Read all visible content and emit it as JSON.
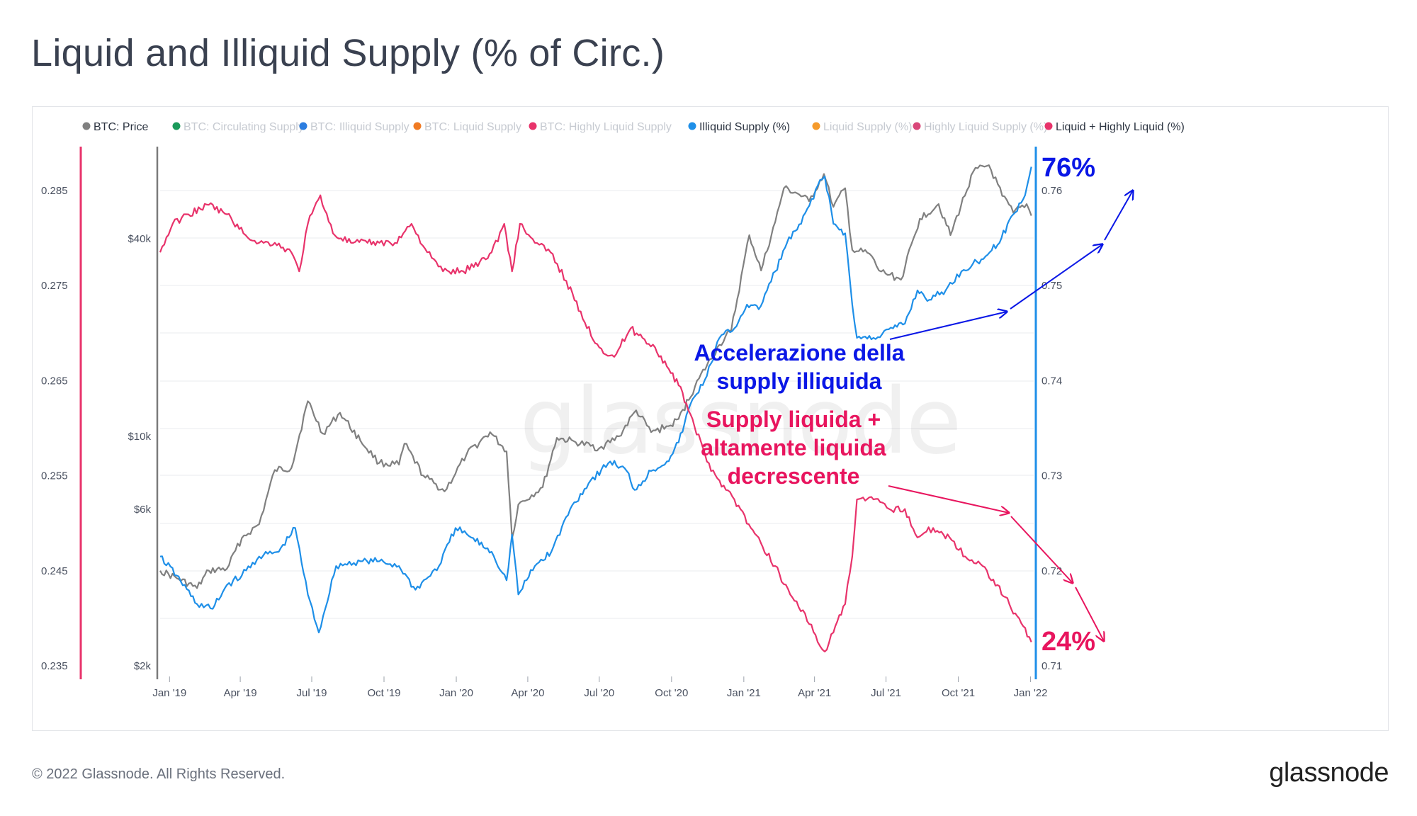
{
  "page": {
    "title": "Liquid and Illiquid Supply (% of Circ.)",
    "copyright": "© 2022 Glassnode. All Rights Reserved.",
    "brand_logo": "glassnode",
    "watermark": "glassnode"
  },
  "chart_data": {
    "type": "line",
    "title": "Liquid and Illiquid Supply (% of Circ.)",
    "legend_position": "top",
    "legend": [
      {
        "label": "BTC: Price",
        "color": "#808080",
        "active": true
      },
      {
        "label": "BTC: Circulating Supply",
        "color": "#1a9a5a",
        "active": false
      },
      {
        "label": "BTC: Illiquid Supply",
        "color": "#2b7de0",
        "active": false
      },
      {
        "label": "BTC: Liquid Supply",
        "color": "#f07a22",
        "active": false
      },
      {
        "label": "BTC: Highly Liquid Supply",
        "color": "#e8336b",
        "active": false
      },
      {
        "label": "Illiquid Supply (%)",
        "color": "#1e8fe8",
        "active": true
      },
      {
        "label": "Liquid Supply (%)",
        "color": "#f59a2b",
        "active": false
      },
      {
        "label": "Highly Liquid Supply (%)",
        "color": "#d9487a",
        "active": false
      },
      {
        "label": "Liquid + Highly Liquid (%)",
        "color": "#e8336b",
        "active": true
      }
    ],
    "x_ticks": [
      "Jan '19",
      "Apr '19",
      "Jul '19",
      "Oct '19",
      "Jan '20",
      "Apr '20",
      "Jul '20",
      "Oct '20",
      "Jan '21",
      "Apr '21",
      "Jul '21",
      "Oct '21",
      "Jan '22"
    ],
    "x_range": [
      "2018-12-20",
      "2022-01-05"
    ],
    "axes": {
      "left_liquid": {
        "ticks": [
          "0.285",
          "0.275",
          "0.265",
          "0.255",
          "0.245",
          "0.235"
        ],
        "range": [
          0.235,
          0.29
        ],
        "color": "#e8336b"
      },
      "left_price": {
        "ticks": [
          "$40k",
          "$10k",
          "$6k",
          "$2k"
        ],
        "scale": "log",
        "color": "#808080"
      },
      "right_illiquid": {
        "ticks": [
          "0.76",
          "0.75",
          "0.74",
          "0.73",
          "0.72",
          "0.71"
        ],
        "range": [
          0.71,
          0.765
        ],
        "color": "#1e8fe8"
      }
    },
    "series": [
      {
        "name": "BTC: Price",
        "color": "#808080",
        "axis": "left_price",
        "points": [
          [
            "2018-12-20",
            3900
          ],
          [
            "2019-01-10",
            3700
          ],
          [
            "2019-02-05",
            3450
          ],
          [
            "2019-02-20",
            3900
          ],
          [
            "2019-03-15",
            3950
          ],
          [
            "2019-04-03",
            4900
          ],
          [
            "2019-04-25",
            5400
          ],
          [
            "2019-05-15",
            7900
          ],
          [
            "2019-06-05",
            8000
          ],
          [
            "2019-06-26",
            12800
          ],
          [
            "2019-07-15",
            10200
          ],
          [
            "2019-08-06",
            11800
          ],
          [
            "2019-09-01",
            9700
          ],
          [
            "2019-09-25",
            8300
          ],
          [
            "2019-10-20",
            8200
          ],
          [
            "2019-10-27",
            9500
          ],
          [
            "2019-11-20",
            7600
          ],
          [
            "2019-12-17",
            6800
          ],
          [
            "2020-01-14",
            8800
          ],
          [
            "2020-02-13",
            10300
          ],
          [
            "2020-03-05",
            9000
          ],
          [
            "2020-03-12",
            4900
          ],
          [
            "2020-03-20",
            6200
          ],
          [
            "2020-04-20",
            7000
          ],
          [
            "2020-05-08",
            9900
          ],
          [
            "2020-06-01",
            9600
          ],
          [
            "2020-07-01",
            9200
          ],
          [
            "2020-07-26",
            10000
          ],
          [
            "2020-08-17",
            12000
          ],
          [
            "2020-09-05",
            10300
          ],
          [
            "2020-09-30",
            10800
          ],
          [
            "2020-10-10",
            11300
          ],
          [
            "2020-11-05",
            15000
          ],
          [
            "2020-12-01",
            19000
          ],
          [
            "2020-12-16",
            21000
          ],
          [
            "2021-01-08",
            41000
          ],
          [
            "2021-01-23",
            32000
          ],
          [
            "2021-02-10",
            45000
          ],
          [
            "2021-02-21",
            57000
          ],
          [
            "2021-03-10",
            55000
          ],
          [
            "2021-03-25",
            52000
          ],
          [
            "2021-04-13",
            63000
          ],
          [
            "2021-04-25",
            50000
          ],
          [
            "2021-05-10",
            57000
          ],
          [
            "2021-05-19",
            37000
          ],
          [
            "2021-06-10",
            36000
          ],
          [
            "2021-06-22",
            32000
          ],
          [
            "2021-07-20",
            30000
          ],
          [
            "2021-08-13",
            46000
          ],
          [
            "2021-09-06",
            51000
          ],
          [
            "2021-09-21",
            41000
          ],
          [
            "2021-10-20",
            64000
          ],
          [
            "2021-11-09",
            67000
          ],
          [
            "2021-11-26",
            54000
          ],
          [
            "2021-12-10",
            48000
          ],
          [
            "2021-12-27",
            51000
          ],
          [
            "2022-01-02",
            47000
          ]
        ]
      },
      {
        "name": "Illiquid Supply (%)",
        "color": "#1e8fe8",
        "axis": "right_illiquid",
        "points": [
          [
            "2018-12-20",
            0.7215
          ],
          [
            "2019-01-10",
            0.7195
          ],
          [
            "2019-02-05",
            0.7165
          ],
          [
            "2019-02-25",
            0.716
          ],
          [
            "2019-03-15",
            0.7185
          ],
          [
            "2019-04-03",
            0.7195
          ],
          [
            "2019-04-25",
            0.7215
          ],
          [
            "2019-05-20",
            0.722
          ],
          [
            "2019-06-10",
            0.7245
          ],
          [
            "2019-06-26",
            0.7175
          ],
          [
            "2019-07-10",
            0.7135
          ],
          [
            "2019-08-01",
            0.7205
          ],
          [
            "2019-09-01",
            0.721
          ],
          [
            "2019-09-25",
            0.721
          ],
          [
            "2019-10-20",
            0.7205
          ],
          [
            "2019-11-10",
            0.718
          ],
          [
            "2019-12-10",
            0.7205
          ],
          [
            "2019-12-31",
            0.7245
          ],
          [
            "2020-01-20",
            0.7235
          ],
          [
            "2020-02-15",
            0.722
          ],
          [
            "2020-03-05",
            0.719
          ],
          [
            "2020-03-12",
            0.7238
          ],
          [
            "2020-03-20",
            0.7175
          ],
          [
            "2020-04-10",
            0.7205
          ],
          [
            "2020-05-01",
            0.722
          ],
          [
            "2020-05-25",
            0.7265
          ],
          [
            "2020-06-20",
            0.7295
          ],
          [
            "2020-07-15",
            0.7315
          ],
          [
            "2020-08-05",
            0.7305
          ],
          [
            "2020-08-15",
            0.7285
          ],
          [
            "2020-09-05",
            0.7305
          ],
          [
            "2020-09-25",
            0.7315
          ],
          [
            "2020-10-10",
            0.7335
          ],
          [
            "2020-10-25",
            0.7375
          ],
          [
            "2020-11-15",
            0.7405
          ],
          [
            "2020-12-01",
            0.7445
          ],
          [
            "2020-12-20",
            0.7455
          ],
          [
            "2021-01-05",
            0.748
          ],
          [
            "2021-01-20",
            0.7475
          ],
          [
            "2021-02-10",
            0.7515
          ],
          [
            "2021-02-25",
            0.7545
          ],
          [
            "2021-03-15",
            0.7565
          ],
          [
            "2021-04-05",
            0.7605
          ],
          [
            "2021-04-14",
            0.7615
          ],
          [
            "2021-04-25",
            0.7565
          ],
          [
            "2021-05-10",
            0.7555
          ],
          [
            "2021-05-19",
            0.748
          ],
          [
            "2021-05-25",
            0.7445
          ],
          [
            "2021-06-15",
            0.7445
          ],
          [
            "2021-07-10",
            0.7455
          ],
          [
            "2021-07-25",
            0.746
          ],
          [
            "2021-08-10",
            0.7495
          ],
          [
            "2021-08-25",
            0.7485
          ],
          [
            "2021-09-15",
            0.7495
          ],
          [
            "2021-10-05",
            0.7515
          ],
          [
            "2021-10-25",
            0.7525
          ],
          [
            "2021-11-10",
            0.7535
          ],
          [
            "2021-11-25",
            0.755
          ],
          [
            "2021-12-10",
            0.7575
          ],
          [
            "2021-12-25",
            0.7595
          ],
          [
            "2022-01-02",
            0.7625
          ]
        ]
      },
      {
        "name": "Liquid + Highly Liquid (%)",
        "color": "#e8336b",
        "axis": "left_liquid",
        "points": [
          [
            "2018-12-20",
            0.2785
          ],
          [
            "2019-01-05",
            0.2815
          ],
          [
            "2019-01-25",
            0.2825
          ],
          [
            "2019-02-20",
            0.2835
          ],
          [
            "2019-03-15",
            0.2825
          ],
          [
            "2019-04-05",
            0.2805
          ],
          [
            "2019-04-25",
            0.2795
          ],
          [
            "2019-05-15",
            0.2795
          ],
          [
            "2019-06-05",
            0.2785
          ],
          [
            "2019-06-15",
            0.2765
          ],
          [
            "2019-06-26",
            0.2815
          ],
          [
            "2019-07-12",
            0.2845
          ],
          [
            "2019-07-28",
            0.2805
          ],
          [
            "2019-08-20",
            0.2795
          ],
          [
            "2019-09-10",
            0.2795
          ],
          [
            "2019-09-25",
            0.2795
          ],
          [
            "2019-10-15",
            0.2795
          ],
          [
            "2019-11-05",
            0.2815
          ],
          [
            "2019-11-25",
            0.2785
          ],
          [
            "2019-12-15",
            0.2765
          ],
          [
            "2020-01-10",
            0.2765
          ],
          [
            "2020-01-31",
            0.2775
          ],
          [
            "2020-02-15",
            0.2785
          ],
          [
            "2020-03-02",
            0.2815
          ],
          [
            "2020-03-12",
            0.2765
          ],
          [
            "2020-03-22",
            0.2815
          ],
          [
            "2020-04-10",
            0.2795
          ],
          [
            "2020-04-30",
            0.2785
          ],
          [
            "2020-05-20",
            0.2755
          ],
          [
            "2020-06-10",
            0.2715
          ],
          [
            "2020-07-01",
            0.2685
          ],
          [
            "2020-07-20",
            0.2675
          ],
          [
            "2020-08-10",
            0.2705
          ],
          [
            "2020-08-25",
            0.2695
          ],
          [
            "2020-09-10",
            0.2685
          ],
          [
            "2020-09-25",
            0.2665
          ],
          [
            "2020-10-10",
            0.2645
          ],
          [
            "2020-10-25",
            0.2615
          ],
          [
            "2020-11-15",
            0.2565
          ],
          [
            "2020-12-01",
            0.2545
          ],
          [
            "2020-12-20",
            0.2525
          ],
          [
            "2021-01-10",
            0.2495
          ],
          [
            "2021-01-25",
            0.2475
          ],
          [
            "2021-02-10",
            0.2455
          ],
          [
            "2021-03-01",
            0.2425
          ],
          [
            "2021-03-20",
            0.2405
          ],
          [
            "2021-04-05",
            0.2375
          ],
          [
            "2021-04-14",
            0.2365
          ],
          [
            "2021-04-25",
            0.2385
          ],
          [
            "2021-05-10",
            0.2415
          ],
          [
            "2021-05-19",
            0.2465
          ],
          [
            "2021-05-25",
            0.2525
          ],
          [
            "2021-06-15",
            0.2525
          ],
          [
            "2021-07-05",
            0.2515
          ],
          [
            "2021-07-25",
            0.2515
          ],
          [
            "2021-08-10",
            0.2485
          ],
          [
            "2021-08-30",
            0.2495
          ],
          [
            "2021-09-20",
            0.2485
          ],
          [
            "2021-10-10",
            0.2465
          ],
          [
            "2021-11-01",
            0.2455
          ],
          [
            "2021-11-20",
            0.2435
          ],
          [
            "2021-12-05",
            0.2415
          ],
          [
            "2021-12-20",
            0.2395
          ],
          [
            "2022-01-02",
            0.2375
          ]
        ]
      }
    ]
  },
  "annotations": {
    "illiquid_pct": "76%",
    "liquid_pct": "24%",
    "illiquid_note_line1": "Accelerazione della",
    "illiquid_note_line2": "supply illiquida",
    "liquid_note_line1": "Supply liquida +",
    "liquid_note_line2": "altamente liquida",
    "liquid_note_line3": "decrescente",
    "illiquid_color": "#0a17e6",
    "liquid_color": "#e8155e"
  }
}
